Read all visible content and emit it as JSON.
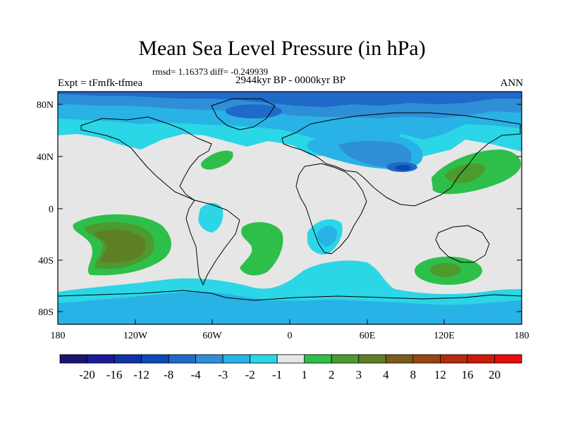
{
  "title": "Mean Sea Level Pressure (in hPa)",
  "stats_line": "rmsd= 1.16373 diff= -0.249939",
  "experiment": "Expt = tFmfk-tfmea",
  "period": "2944kyr BP - 0000kyr BP",
  "season": "ANN",
  "lat_labels": [
    "80N",
    "40N",
    "0",
    "40S",
    "80S"
  ],
  "lon_labels": [
    "180",
    "120W",
    "60W",
    "0",
    "60E",
    "120E",
    "180"
  ],
  "colorbar": {
    "levels": [
      "-20",
      "-16",
      "-12",
      "-8",
      "-4",
      "-3",
      "-2",
      "-1",
      "1",
      "2",
      "3",
      "4",
      "8",
      "12",
      "16",
      "20"
    ],
    "colors": [
      "#1a1470",
      "#1a1a99",
      "#0f33a6",
      "#0a4bb8",
      "#1f6ac9",
      "#2e8fd6",
      "#29b2e6",
      "#2bd6e6",
      "#e6e6e6",
      "#2ebf4a",
      "#4d9a2e",
      "#5f7f25",
      "#7a5a1f",
      "#9a4414",
      "#b32a0f",
      "#cc1a0a",
      "#e60d0d"
    ]
  },
  "colors": {
    "ocean_base": "#e6e6e6",
    "coast": "#000000"
  }
}
